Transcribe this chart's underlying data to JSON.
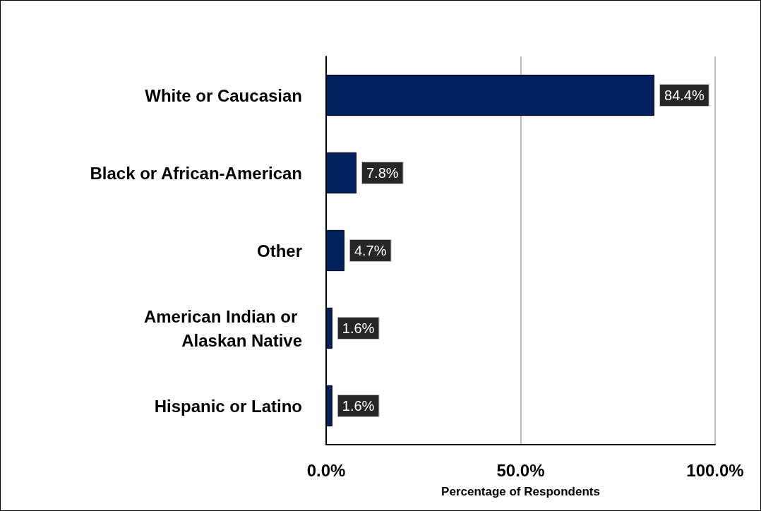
{
  "chart_data": {
    "type": "bar",
    "orientation": "horizontal",
    "xlabel": "Percentage of Respondents",
    "categories": [
      "White or Caucasian",
      "Black or African-American",
      "Other",
      "American Indian or Alaskan Native",
      "Hispanic or Latino"
    ],
    "values": [
      84.4,
      7.8,
      4.7,
      1.6,
      1.6
    ],
    "value_labels": [
      "84.4%",
      "7.8%",
      "4.7%",
      "1.6%",
      "1.6%"
    ],
    "color": "#002060",
    "xlim": [
      0,
      100
    ],
    "xticks": [
      {
        "value": 0,
        "label": "0.0%"
      },
      {
        "value": 50,
        "label": "50.0%"
      },
      {
        "value": 100,
        "label": "100.0%"
      }
    ],
    "grid": "x"
  }
}
